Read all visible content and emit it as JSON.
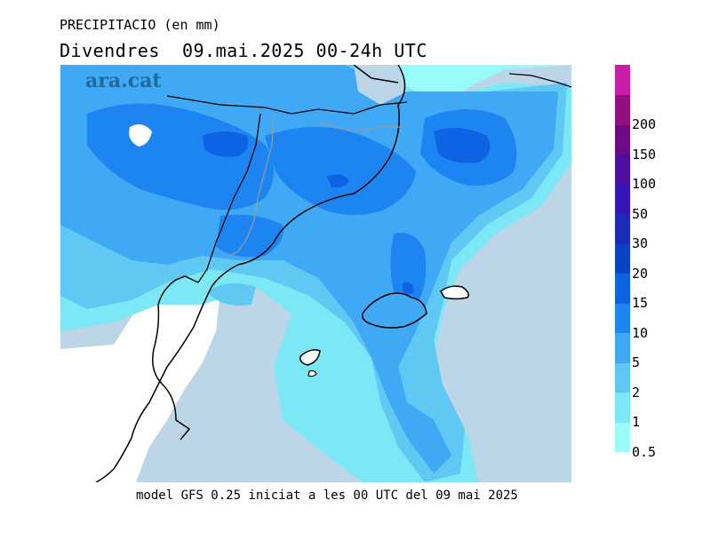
{
  "header": {
    "title_small": "PRECIPITACIO (en mm)",
    "title_large": "Divendres  09.mai.2025 00-24h UTC"
  },
  "brand": {
    "name": "ara.cat"
  },
  "footer": {
    "text": "model GFS 0.25 iniciat a les 00 UTC del 09 mai 2025"
  },
  "legend": {
    "levels": [
      {
        "label": "0.5",
        "color": "#98fbf8"
      },
      {
        "label": "1",
        "color": "#7de8f5"
      },
      {
        "label": "2",
        "color": "#5fc9f4"
      },
      {
        "label": "5",
        "color": "#3fa9f5"
      },
      {
        "label": "10",
        "color": "#1d85f2"
      },
      {
        "label": "15",
        "color": "#0d63e2"
      },
      {
        "label": "20",
        "color": "#0a44c6"
      },
      {
        "label": "30",
        "color": "#1b2bb7"
      },
      {
        "label": "50",
        "color": "#3514b8"
      },
      {
        "label": "100",
        "color": "#4d0f9e"
      },
      {
        "label": "150",
        "color": "#6d0a84"
      },
      {
        "label": "200",
        "color": "#92107d"
      },
      {
        "label": "",
        "color": "#c81ea8"
      }
    ]
  },
  "colors": {
    "sea": "#bcd6e8",
    "land_dry": "#ffffff",
    "coast": "#000000",
    "border": "#9a9a9a"
  }
}
